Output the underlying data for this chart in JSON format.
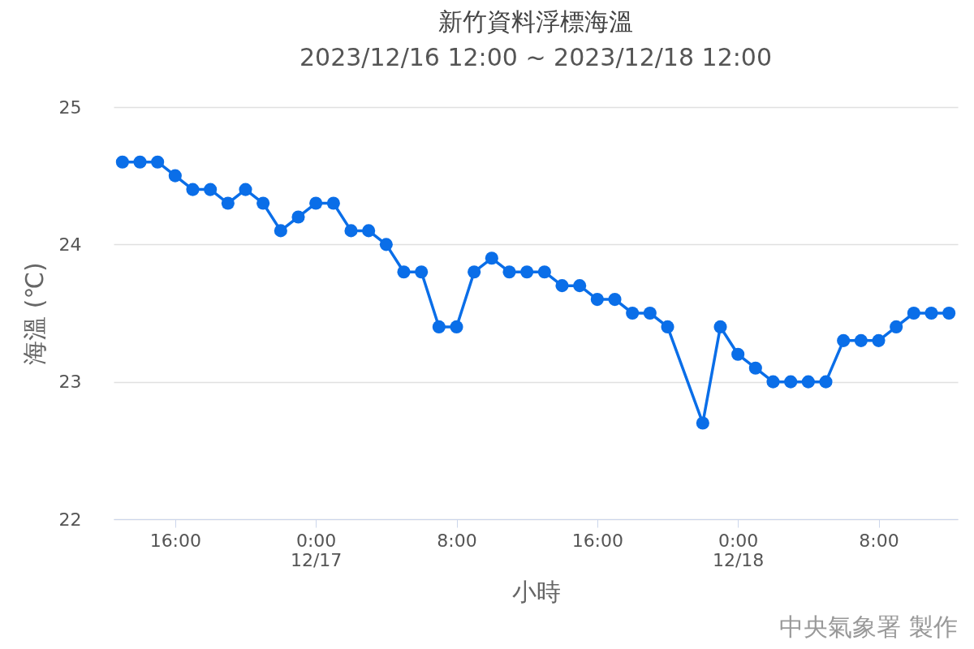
{
  "chart_data": {
    "type": "line",
    "title": "新竹資料浮標海溫",
    "subtitle": "2023/12/16 12:00 ~ 2023/12/18 12:00",
    "xlabel": "小時",
    "ylabel": "海溫 (℃)",
    "x": [
      "2023-12-16T13:00",
      "2023-12-16T14:00",
      "2023-12-16T15:00",
      "2023-12-16T16:00",
      "2023-12-16T17:00",
      "2023-12-16T18:00",
      "2023-12-16T19:00",
      "2023-12-16T20:00",
      "2023-12-16T21:00",
      "2023-12-16T22:00",
      "2023-12-16T23:00",
      "2023-12-17T00:00",
      "2023-12-17T01:00",
      "2023-12-17T02:00",
      "2023-12-17T03:00",
      "2023-12-17T04:00",
      "2023-12-17T05:00",
      "2023-12-17T06:00",
      "2023-12-17T07:00",
      "2023-12-17T08:00",
      "2023-12-17T09:00",
      "2023-12-17T10:00",
      "2023-12-17T11:00",
      "2023-12-17T12:00",
      "2023-12-17T13:00",
      "2023-12-17T14:00",
      "2023-12-17T15:00",
      "2023-12-17T16:00",
      "2023-12-17T17:00",
      "2023-12-17T18:00",
      "2023-12-17T19:00",
      "2023-12-17T20:00",
      "2023-12-17T22:00",
      "2023-12-17T23:00",
      "2023-12-18T00:00",
      "2023-12-18T01:00",
      "2023-12-18T02:00",
      "2023-12-18T03:00",
      "2023-12-18T04:00",
      "2023-12-18T05:00",
      "2023-12-18T06:00",
      "2023-12-18T07:00",
      "2023-12-18T08:00",
      "2023-12-18T09:00",
      "2023-12-18T10:00",
      "2023-12-18T11:00",
      "2023-12-18T12:00"
    ],
    "series": [
      {
        "color": "#0a6ee8",
        "values": [
          24.6,
          24.6,
          24.6,
          24.5,
          24.4,
          24.4,
          24.3,
          24.4,
          24.3,
          24.1,
          24.2,
          24.3,
          24.3,
          24.1,
          24.1,
          24.0,
          23.8,
          23.8,
          23.4,
          23.4,
          23.8,
          23.9,
          23.8,
          23.8,
          23.8,
          23.7,
          23.7,
          23.6,
          23.6,
          23.5,
          23.5,
          23.4,
          22.7,
          23.4,
          23.2,
          23.1,
          23.0,
          23.0,
          23.0,
          23.0,
          23.3,
          23.3,
          23.3,
          23.4,
          23.5,
          23.5,
          23.5
        ]
      }
    ],
    "xlim": [
      "2023-12-16T12:30",
      "2023-12-18T12:30"
    ],
    "xticks": [
      {
        "value": "2023-12-16T16:00",
        "label": "16:00"
      },
      {
        "value": "2023-12-17T00:00",
        "label": "0:00\n12/17"
      },
      {
        "value": "2023-12-17T08:00",
        "label": "8:00"
      },
      {
        "value": "2023-12-17T16:00",
        "label": "16:00"
      },
      {
        "value": "2023-12-18T00:00",
        "label": "0:00\n12/18"
      },
      {
        "value": "2023-12-18T08:00",
        "label": "8:00"
      }
    ],
    "ylim": [
      22,
      25
    ],
    "yticks": [
      22,
      23,
      24,
      25
    ],
    "grid": "y",
    "legend": false,
    "marker": "circle",
    "line_style": "solid",
    "annotations": [
      "中央氣象署 製作"
    ]
  }
}
